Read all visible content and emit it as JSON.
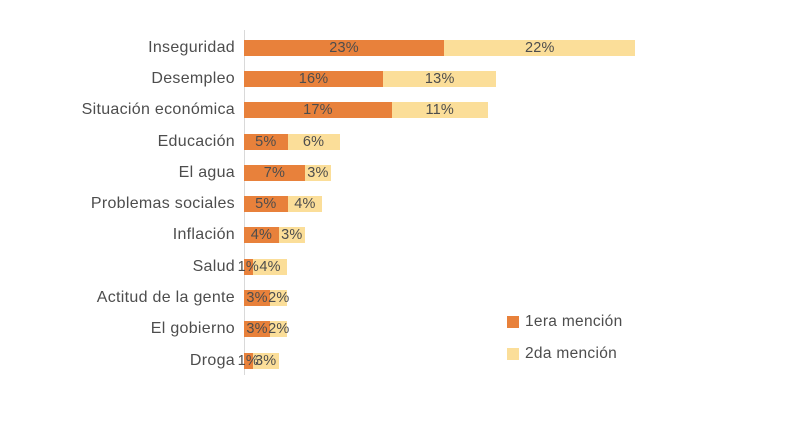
{
  "chart_data": {
    "type": "bar",
    "orientation": "horizontal",
    "stacked": true,
    "title": "",
    "xlabel": "",
    "ylabel": "",
    "xlim": [
      0,
      45
    ],
    "grid": false,
    "data_labels": true,
    "value_suffix": "%",
    "legend_position": "bottom-right",
    "categories": [
      "Inseguridad",
      "Desempleo",
      "Situación económica",
      "Educación",
      "El agua",
      "Problemas sociales",
      "Inflación",
      "Salud",
      "Actitud de la gente",
      "El gobierno",
      "Droga"
    ],
    "series": [
      {
        "name": "1era mención",
        "color": "#E8813B",
        "values": [
          23,
          16,
          17,
          5,
          7,
          5,
          4,
          1,
          3,
          3,
          1
        ]
      },
      {
        "name": "2da mención",
        "color": "#FBDE99",
        "values": [
          22,
          13,
          11,
          6,
          3,
          4,
          3,
          4,
          2,
          2,
          3
        ]
      }
    ]
  },
  "colors": {
    "background": "#FFFFFF",
    "text": "#4D4D4D",
    "axis_line": "#D9D9D9"
  }
}
